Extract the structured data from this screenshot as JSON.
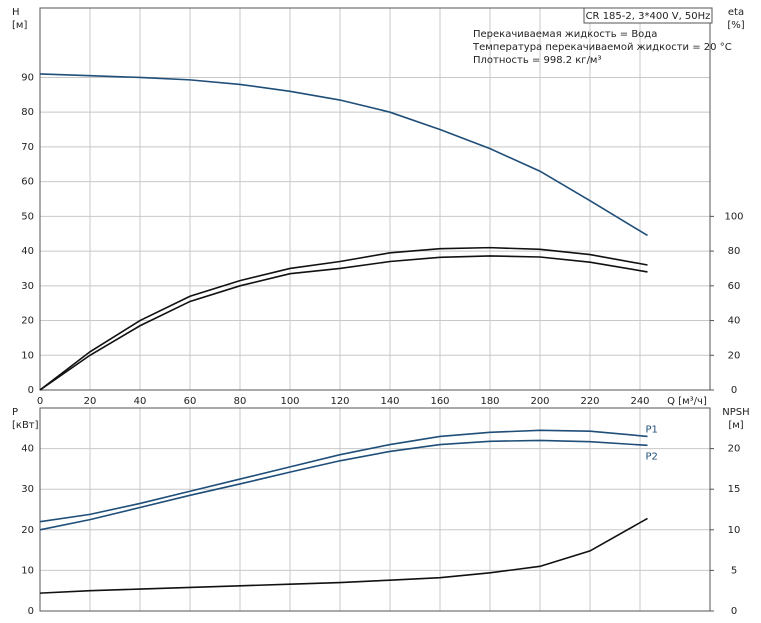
{
  "chart_data": [
    {
      "type": "line",
      "title": "CR 185-2, 3*400 V, 50Hz",
      "annotations": [
        "Перекачиваемая жидкость = Вода",
        "Температура перекачиваемой жидкости = 20 °C",
        "Плотность = 998.2 кг/м³"
      ],
      "ylabel": "H",
      "yunit": "[м]",
      "y2label": "eta",
      "y2unit": "[%]",
      "xlabel": "Q [м³/ч]",
      "x": [
        0,
        20,
        40,
        60,
        80,
        100,
        120,
        140,
        160,
        180,
        200,
        220,
        243
      ],
      "xlim": [
        0,
        268
      ],
      "xticks": [
        0,
        20,
        40,
        60,
        80,
        100,
        120,
        140,
        160,
        180,
        200,
        220,
        240
      ],
      "ylim": [
        0,
        110
      ],
      "yticks": [
        0,
        10,
        20,
        30,
        40,
        50,
        60,
        70,
        80,
        90
      ],
      "y2lim": [
        0,
        220
      ],
      "y2ticks": [
        0,
        20,
        40,
        60,
        80,
        100
      ],
      "grid": true,
      "series": [
        {
          "color": "#1f4e79",
          "values": [
            91,
            90.5,
            90,
            89.3,
            88,
            86,
            83.5,
            80,
            75,
            69.5,
            63,
            54.5,
            44.5
          ]
        },
        {
          "color": "#111111",
          "axis": "y2",
          "values": [
            0,
            22,
            40,
            54,
            63,
            70,
            74,
            79,
            81.4,
            82,
            81,
            78,
            72
          ]
        },
        {
          "color": "#111111",
          "axis": "y2",
          "values": [
            0,
            20,
            37,
            51,
            60,
            67,
            70,
            74,
            76.4,
            77.2,
            76.6,
            73.6,
            68
          ]
        }
      ]
    },
    {
      "type": "line",
      "ylabel": "P",
      "yunit": "[кВт]",
      "y2label": "NPSH",
      "y2unit": "[м]",
      "x": [
        0,
        20,
        40,
        60,
        80,
        100,
        120,
        140,
        160,
        180,
        200,
        220,
        243
      ],
      "xlim": [
        0,
        268
      ],
      "xticks": [
        0,
        20,
        40,
        60,
        80,
        100,
        120,
        140,
        160,
        180,
        200,
        220,
        240
      ],
      "xtick_labels": false,
      "ylim": [
        0,
        50
      ],
      "yticks": [
        0,
        10,
        20,
        30,
        40
      ],
      "y2lim": [
        0,
        25
      ],
      "y2ticks": [
        0,
        5,
        10,
        15,
        20
      ],
      "grid": true,
      "series": [
        {
          "name": "P1",
          "color": "#1f4e79",
          "values": [
            22,
            23.8,
            26.5,
            29.5,
            32.5,
            35.5,
            38.5,
            41,
            43,
            44,
            44.5,
            44.3,
            43
          ]
        },
        {
          "name": "P2",
          "color": "#1f4e79",
          "values": [
            20,
            22.5,
            25.5,
            28.5,
            31.3,
            34.2,
            37,
            39.3,
            41,
            41.8,
            42,
            41.7,
            40.8
          ]
        },
        {
          "color": "#111111",
          "axis": "y2",
          "values": [
            2.2,
            2.5,
            2.7,
            2.9,
            3.1,
            3.3,
            3.5,
            3.8,
            4.1,
            4.7,
            5.5,
            7.4,
            11.4
          ]
        }
      ]
    }
  ]
}
